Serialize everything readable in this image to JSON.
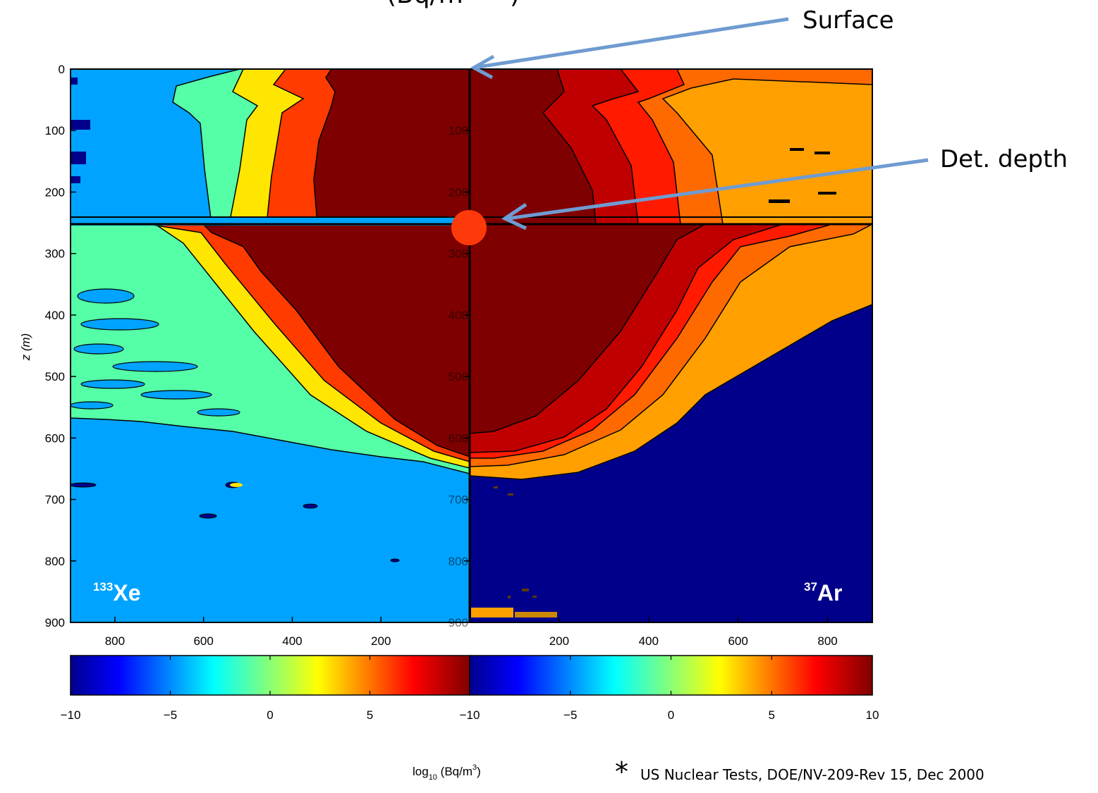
{
  "chart_data": {
    "type": "heatmap",
    "title_fragment": "(Bq/m",
    "ylabel": "z (m)",
    "y_ticks": [
      0,
      100,
      200,
      300,
      400,
      500,
      600,
      700,
      800,
      900
    ],
    "ylim": [
      0,
      900
    ],
    "ylim_reversed": true,
    "x_ticks_left": [
      800,
      600,
      400,
      200
    ],
    "x_ticks_right": [
      200,
      400,
      600,
      800
    ],
    "xlim_each_panel": [
      0,
      900
    ],
    "panels": [
      {
        "name": "133Xe",
        "label_sup": "133",
        "label_base": "Xe",
        "side": "left"
      },
      {
        "name": "37Ar",
        "label_sup": "37",
        "label_base": "Ar",
        "side": "right"
      }
    ],
    "contour_levels_log10_Bq_per_m3": [
      0,
      2,
      4,
      6,
      8
    ],
    "colorbar": {
      "label": "log₁₀ (Bq/m³)",
      "label_base": "log",
      "label_sub": "10",
      "label_rest": "(Bq/m",
      "label_sup": "3",
      "label_close": ")",
      "ticks_left": [
        "−10",
        "−5",
        "0",
        "5"
      ],
      "ticks_right": [
        "−10",
        "−5",
        "0",
        "5",
        "10"
      ],
      "range": [
        -10,
        10
      ],
      "colormap": "jet"
    },
    "colors": {
      "deep_blue": "#00008b",
      "sky_blue": "#00a3ff",
      "aquamarine": "#55ffa8",
      "yellow": "#ffe600",
      "orange": "#ffa000",
      "dark_orange": "#ff6a00",
      "red_orange": "#ff3b00",
      "red": "#ff1a00",
      "dark_red": "#c00000",
      "maroon": "#7f0000",
      "arrow": "#6f9bd1",
      "marker": "#ff3a0a"
    }
  },
  "annotations": {
    "surface": "Surface",
    "det_depth": "Det. depth",
    "footnote_star": "*",
    "footnote": "US Nuclear Tests, DOE/NV-209-Rev 15, Dec 2000"
  }
}
